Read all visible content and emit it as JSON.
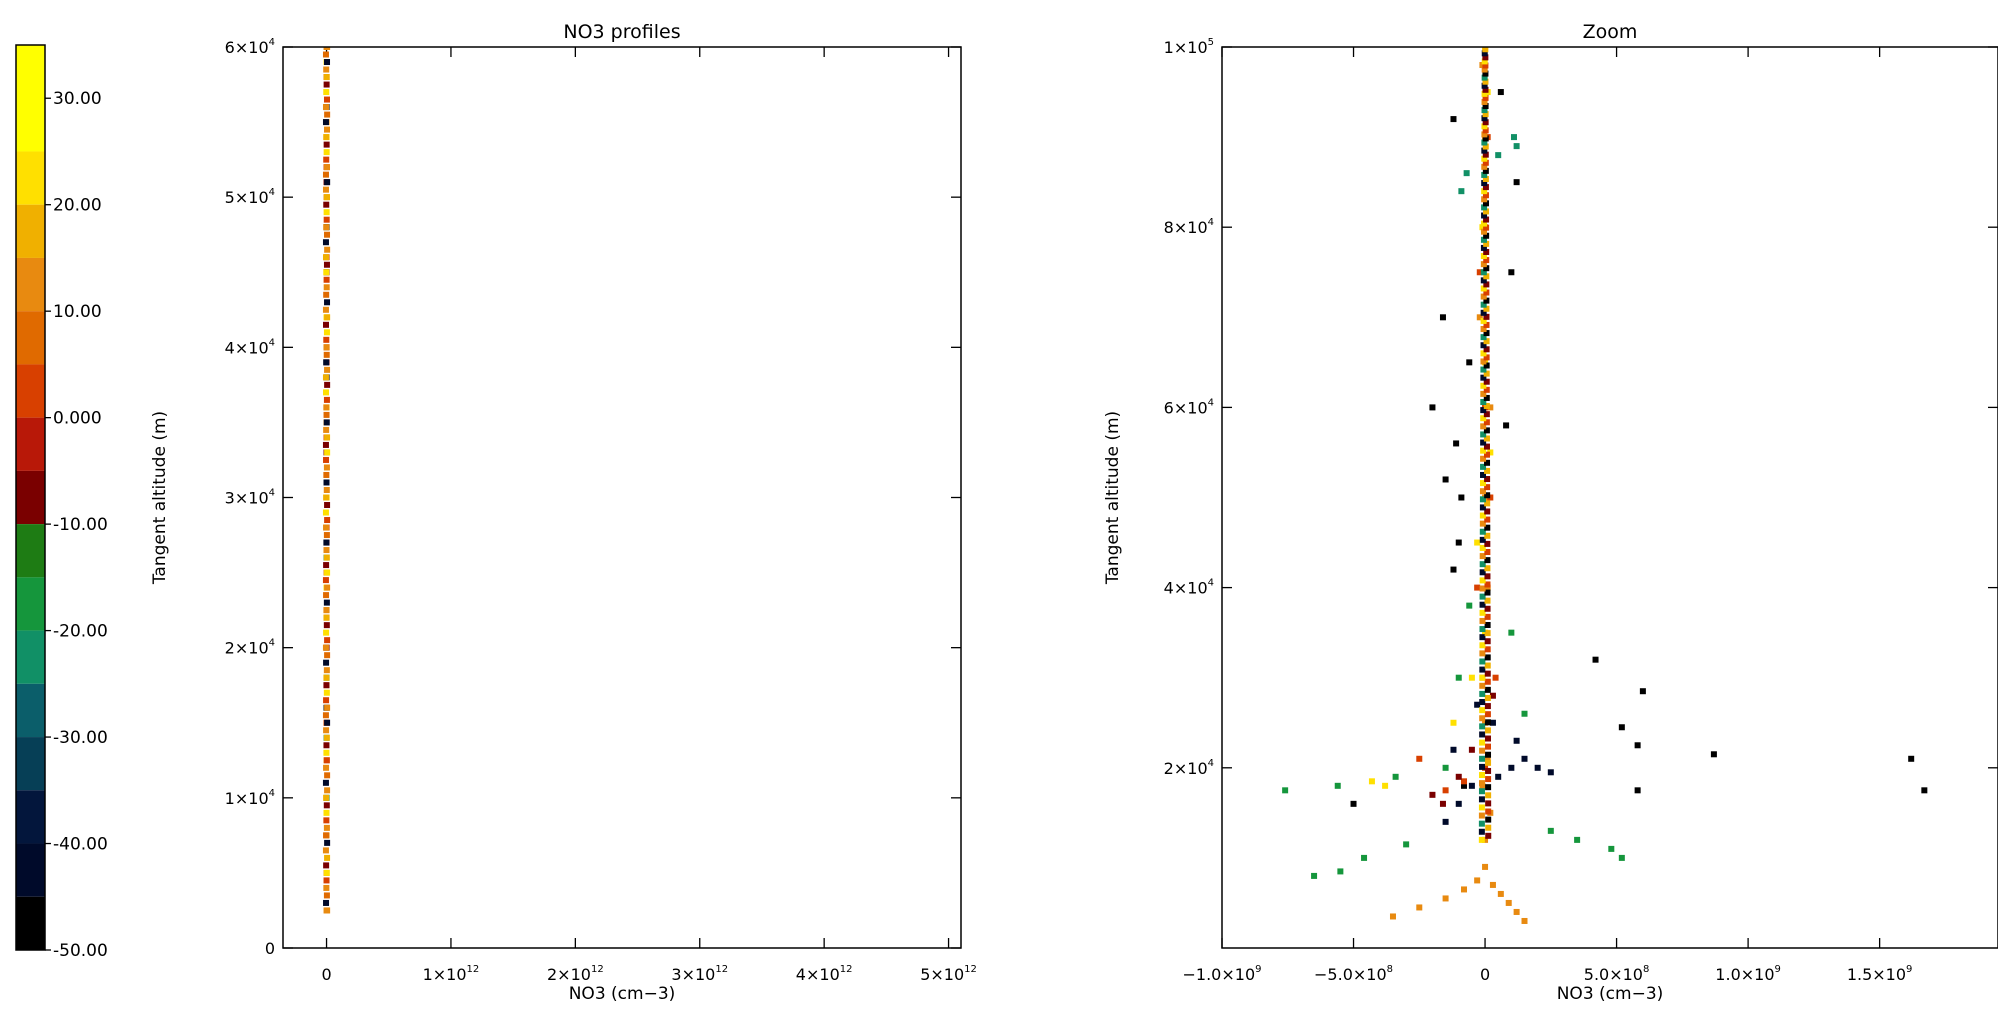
{
  "colorbar": {
    "tick_labels": [
      "30.00",
      "20.00",
      "10.00",
      "0.000",
      "-10.00",
      "-20.00",
      "-30.00",
      "-40.00",
      "-50.00"
    ],
    "tick_values": [
      30,
      20,
      10,
      0,
      -10,
      -20,
      -30,
      -40,
      -50
    ],
    "range": [
      -50,
      35
    ],
    "bands": [
      {
        "from": 25,
        "to": 35,
        "color": "#ffff00"
      },
      {
        "from": 20,
        "to": 25,
        "color": "#ffe000"
      },
      {
        "from": 15,
        "to": 20,
        "color": "#f0b000"
      },
      {
        "from": 10,
        "to": 15,
        "color": "#e88a10"
      },
      {
        "from": 5,
        "to": 10,
        "color": "#e06a00"
      },
      {
        "from": 0,
        "to": 5,
        "color": "#d84000"
      },
      {
        "from": -5,
        "to": 0,
        "color": "#b81808"
      },
      {
        "from": -10,
        "to": -5,
        "color": "#7a0000"
      },
      {
        "from": -15,
        "to": -10,
        "color": "#1e7c14"
      },
      {
        "from": -20,
        "to": -15,
        "color": "#15963c"
      },
      {
        "from": -25,
        "to": -20,
        "color": "#119066"
      },
      {
        "from": -30,
        "to": -25,
        "color": "#0b5e6a"
      },
      {
        "from": -35,
        "to": -30,
        "color": "#063f56"
      },
      {
        "from": -40,
        "to": -35,
        "color": "#03163c"
      },
      {
        "from": -45,
        "to": -40,
        "color": "#000a2a"
      },
      {
        "from": -50,
        "to": -45,
        "color": "#000000"
      }
    ]
  },
  "chart_data": [
    {
      "type": "scatter",
      "title": "NO3 profiles",
      "xlabel": "NO3 (cm−3)",
      "ylabel": "Tangent altitude (m)",
      "xlim": [
        -350000000000.0,
        5100000000000.0
      ],
      "ylim": [
        0,
        60000
      ],
      "x_ticks": [
        0,
        1000000000000.0,
        2000000000000.0,
        3000000000000.0,
        4000000000000.0,
        5000000000000.0
      ],
      "x_tick_labels": [
        {
          "base": "0",
          "exp": ""
        },
        {
          "base": "1×10",
          "exp": "12"
        },
        {
          "base": "2×10",
          "exp": "12"
        },
        {
          "base": "3×10",
          "exp": "12"
        },
        {
          "base": "4×10",
          "exp": "12"
        },
        {
          "base": "5×10",
          "exp": "12"
        }
      ],
      "y_ticks": [
        0,
        10000,
        20000,
        30000,
        40000,
        50000,
        60000
      ],
      "y_tick_labels": [
        {
          "base": "0",
          "exp": ""
        },
        {
          "base": "1×10",
          "exp": "4"
        },
        {
          "base": "2×10",
          "exp": "4"
        },
        {
          "base": "3×10",
          "exp": "4"
        },
        {
          "base": "4×10",
          "exp": "4"
        },
        {
          "base": "5×10",
          "exp": "4"
        },
        {
          "base": "6×10",
          "exp": "4"
        }
      ],
      "series": [
        {
          "color": "#e88a10",
          "x": [
            0,
            0,
            0,
            0,
            0,
            0,
            0,
            0,
            0,
            0,
            0,
            0,
            0,
            0,
            0,
            0,
            0,
            0
          ],
          "y": [
            2500,
            5000,
            7500,
            10000,
            12500,
            15000,
            17500,
            20000,
            22500,
            25000,
            30000,
            35000,
            40000,
            45000,
            50000,
            55000,
            58000,
            60000
          ]
        },
        {
          "color": "#d84000",
          "x": [
            0,
            0,
            0,
            0,
            0,
            0,
            0,
            0
          ],
          "y": [
            15000,
            22000,
            28000,
            34000,
            40000,
            46000,
            52000,
            58000
          ]
        },
        {
          "color": "#ffe000",
          "x": [
            0,
            0,
            0,
            0,
            0,
            0,
            0,
            0
          ],
          "y": [
            18000,
            24000,
            30000,
            36000,
            42000,
            48000,
            54000,
            59000
          ]
        },
        {
          "color": "#7a0000",
          "x": [
            0,
            0,
            0,
            0,
            0,
            0
          ],
          "y": [
            20000,
            27000,
            33000,
            39000,
            45000,
            51000
          ]
        },
        {
          "color": "#119066",
          "x": [
            0,
            0,
            0,
            0
          ],
          "y": [
            10000,
            14000,
            18000,
            26000
          ]
        },
        {
          "color": "#000000",
          "x": [
            0,
            0,
            0,
            0
          ],
          "y": [
            16000,
            38000,
            48000,
            56000
          ]
        }
      ]
    },
    {
      "type": "scatter",
      "title": "Zoom",
      "xlabel": "NO3 (cm−3)",
      "ylabel": "Tangent altitude (m)",
      "xlim": [
        -1000000000.0,
        1950000000.0
      ],
      "ylim": [
        0,
        100000
      ],
      "x_ticks": [
        -1000000000.0,
        -500000000.0,
        0,
        500000000.0,
        1000000000.0,
        1500000000.0
      ],
      "x_tick_labels": [
        {
          "base": "−1.0×10",
          "exp": "9"
        },
        {
          "base": "−5.0×10",
          "exp": "8"
        },
        {
          "base": "0",
          "exp": ""
        },
        {
          "base": "5.0×10",
          "exp": "8"
        },
        {
          "base": "1.0×10",
          "exp": "9"
        },
        {
          "base": "1.5×10",
          "exp": "9"
        }
      ],
      "y_ticks": [
        20000,
        40000,
        60000,
        80000,
        100000
      ],
      "y_tick_labels": [
        {
          "base": "2×10",
          "exp": "4"
        },
        {
          "base": "4×10",
          "exp": "4"
        },
        {
          "base": "6×10",
          "exp": "4"
        },
        {
          "base": "8×10",
          "exp": "4"
        },
        {
          "base": "1×10",
          "exp": "5"
        }
      ],
      "series": [
        {
          "color": "#e88a10",
          "x": [
            -350000000.0,
            -250000000.0,
            -150000000.0,
            -80000000.0,
            -30000000.0,
            0,
            30000000.0,
            60000000.0,
            90000000.0,
            120000000.0,
            150000000.0,
            0,
            20000000.0,
            -10000000.0,
            10000000.0,
            0,
            -10000000.0,
            10000000.0,
            0,
            20000000.0,
            -20000000.0,
            0,
            0,
            -10000000.0
          ],
          "y": [
            3500,
            4500,
            5500,
            6500,
            7500,
            9000,
            7000,
            6000,
            5000,
            4000,
            3000,
            12000,
            15000,
            18000,
            21000,
            25000,
            30000,
            40000,
            50000,
            60000,
            70000,
            80000,
            90000,
            98000
          ]
        },
        {
          "color": "#000a2a",
          "x": [
            -150000000.0,
            -100000000.0,
            -50000000.0,
            50000000.0,
            100000000.0,
            150000000.0,
            200000000.0,
            250000000.0,
            -120000000.0,
            120000000.0,
            30000000.0,
            -30000000.0
          ],
          "y": [
            14000,
            16000,
            18000,
            19000,
            20000,
            21000,
            20000,
            19500,
            22000,
            23000,
            25000,
            27000
          ]
        },
        {
          "color": "#000000",
          "x": [
            420000000.0,
            600000000.0,
            520000000.0,
            580000000.0,
            870000000.0,
            1620000000.0,
            1670000000.0,
            580000000.0,
            -500000000.0,
            -80000000.0,
            -120000000.0,
            -90000000.0,
            -150000000.0,
            -110000000.0,
            -200000000.0,
            -160000000.0,
            100000000.0,
            60000000.0,
            -120000000.0,
            120000000.0,
            -60000000.0,
            80000000.0,
            -100000000.0
          ],
          "y": [
            32000,
            28500,
            24500,
            22500,
            21500,
            21000,
            17500,
            17500,
            16000,
            18000,
            42000,
            50000,
            52000,
            56000,
            60000,
            70000,
            75000,
            95000,
            92000,
            85000,
            65000,
            58000,
            45000
          ]
        },
        {
          "color": "#15963c",
          "x": [
            -1030000000.0,
            -760000000.0,
            -560000000.0,
            -340000000.0,
            -150000000.0,
            -460000000.0,
            -300000000.0,
            -550000000.0,
            -650000000.0,
            350000000.0,
            480000000.0,
            520000000.0,
            250000000.0,
            150000000.0,
            -100000000.0,
            100000000.0,
            -60000000.0
          ],
          "y": [
            17000,
            17500,
            18000,
            19000,
            20000,
            10000,
            11500,
            8500,
            8000,
            12000,
            11000,
            10000,
            13000,
            26000,
            30000,
            35000,
            38000
          ]
        },
        {
          "color": "#d84000",
          "x": [
            -250000000.0,
            -150000000.0,
            -80000000.0,
            0,
            40000000.0,
            -30000000.0,
            20000000.0,
            0,
            -20000000.0,
            10000000.0
          ],
          "y": [
            21000,
            17500,
            18500,
            20000,
            30000,
            40000,
            50000,
            60000,
            75000,
            90000
          ]
        },
        {
          "color": "#ffe000",
          "x": [
            -430000000.0,
            -380000000.0,
            -120000000.0,
            -50000000.0,
            0,
            -30000000.0,
            20000000.0,
            0,
            -10000000.0,
            10000000.0,
            0
          ],
          "y": [
            18500,
            18000,
            25000,
            30000,
            35000,
            45000,
            55000,
            65000,
            80000,
            95000,
            100000
          ]
        },
        {
          "color": "#119066",
          "x": [
            -90000000.0,
            -70000000.0,
            110000000.0,
            120000000.0,
            50000000.0
          ],
          "y": [
            84000,
            86000,
            90000,
            89000,
            88000
          ]
        },
        {
          "color": "#7a0000",
          "x": [
            -200000000.0,
            -160000000.0,
            -100000000.0,
            -50000000.0,
            30000000.0
          ],
          "y": [
            17000,
            16000,
            19000,
            22000,
            28000
          ]
        }
      ]
    }
  ]
}
